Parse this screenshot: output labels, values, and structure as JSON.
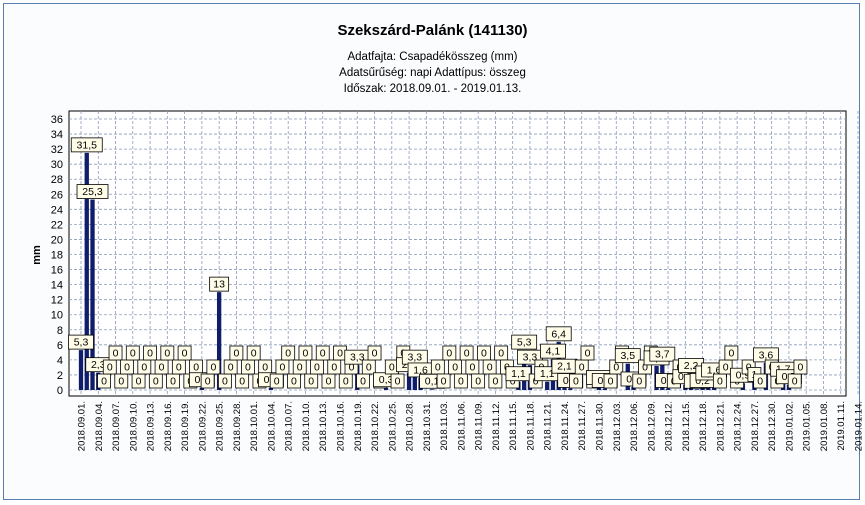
{
  "header": {
    "title": "Szekszárd-Palánk (141130)",
    "line1": "Adatfajta: Csapadékösszeg (mm)",
    "line2": "Adatsűrűség: napi  Adattípus: összeg",
    "line3": "Időszak: 2018.09.01. - 2019.01.13."
  },
  "chart_data": {
    "type": "bar",
    "title": "Szekszárd-Palánk (141130)",
    "ylabel": "mm",
    "ylim": [
      0,
      37
    ],
    "yticks": [
      0,
      2,
      4,
      6,
      8,
      10,
      12,
      14,
      16,
      18,
      20,
      22,
      24,
      26,
      28,
      30,
      32,
      34,
      36
    ],
    "grid": true,
    "bar_color": "#0f1d6b",
    "x_tick_labels": [
      "2018.09.01.",
      "2018.09.04.",
      "2018.09.07.",
      "2018.09.10.",
      "2018.09.13.",
      "2018.09.16.",
      "2018.09.19.",
      "2018.09.22.",
      "2018.09.25.",
      "2018.09.28.",
      "2018.10.01.",
      "2018.10.04.",
      "2018.10.07.",
      "2018.10.10.",
      "2018.10.13.",
      "2018.10.16.",
      "2018.10.19.",
      "2018.10.22.",
      "2018.10.25.",
      "2018.10.28.",
      "2018.10.31.",
      "2018.11.03.",
      "2018.11.06.",
      "2018.11.09.",
      "2018.11.12.",
      "2018.11.15.",
      "2018.11.18.",
      "2018.11.21.",
      "2018.11.24.",
      "2018.11.27.",
      "2018.11.30.",
      "2018.12.03.",
      "2018.12.06.",
      "2018.12.09.",
      "2018.12.12.",
      "2018.12.15.",
      "2018.12.18.",
      "2018.12.21.",
      "2018.12.24.",
      "2018.12.27.",
      "2018.12.30.",
      "2019.01.02.",
      "2019.01.05.",
      "2019.01.08.",
      "2019.01.11.",
      "2019.01.14."
    ],
    "bars": [
      {
        "day": 0,
        "value": 5.3,
        "label": "5,3"
      },
      {
        "day": 1,
        "value": 31.5,
        "label": "31,5"
      },
      {
        "day": 2,
        "value": 25.3,
        "label": "25,3"
      },
      {
        "day": 3,
        "value": 2.3,
        "label": "2,3"
      },
      {
        "day": 4,
        "value": 0,
        "label": "0"
      },
      {
        "day": 5,
        "value": 0,
        "label": "0"
      },
      {
        "day": 6,
        "value": 0,
        "label": "0"
      },
      {
        "day": 7,
        "value": 0,
        "label": "0"
      },
      {
        "day": 8,
        "value": 0,
        "label": "0"
      },
      {
        "day": 9,
        "value": 0,
        "label": "0"
      },
      {
        "day": 10,
        "value": 0,
        "label": "0"
      },
      {
        "day": 11,
        "value": 0,
        "label": "0"
      },
      {
        "day": 12,
        "value": 0,
        "label": "0"
      },
      {
        "day": 13,
        "value": 0,
        "label": "0"
      },
      {
        "day": 14,
        "value": 0,
        "label": "0"
      },
      {
        "day": 15,
        "value": 0,
        "label": "0"
      },
      {
        "day": 16,
        "value": 0,
        "label": "0"
      },
      {
        "day": 17,
        "value": 0,
        "label": "0"
      },
      {
        "day": 18,
        "value": 0,
        "label": "0"
      },
      {
        "day": 19,
        "value": 0,
        "label": "0"
      },
      {
        "day": 20,
        "value": 0,
        "label": "0"
      },
      {
        "day": 21,
        "value": 0.3,
        "label": "0,3"
      },
      {
        "day": 22,
        "value": 0,
        "label": "0"
      },
      {
        "day": 23,
        "value": 0,
        "label": "0"
      },
      {
        "day": 24,
        "value": 13,
        "label": "13"
      },
      {
        "day": 25,
        "value": 0,
        "label": "0"
      },
      {
        "day": 26,
        "value": 0,
        "label": "0"
      },
      {
        "day": 27,
        "value": 0,
        "label": "0"
      },
      {
        "day": 28,
        "value": 0,
        "label": "0"
      },
      {
        "day": 29,
        "value": 0,
        "label": "0"
      },
      {
        "day": 30,
        "value": 0,
        "label": "0"
      },
      {
        "day": 31,
        "value": 0,
        "label": "0"
      },
      {
        "day": 32,
        "value": 0,
        "label": "0"
      },
      {
        "day": 33,
        "value": 0.3,
        "label": "0,3"
      },
      {
        "day": 34,
        "value": 0,
        "label": "0"
      },
      {
        "day": 35,
        "value": 0,
        "label": "0"
      },
      {
        "day": 36,
        "value": 0,
        "label": "0"
      },
      {
        "day": 37,
        "value": 0,
        "label": "0"
      },
      {
        "day": 38,
        "value": 0,
        "label": "0"
      },
      {
        "day": 39,
        "value": 0,
        "label": "0"
      },
      {
        "day": 40,
        "value": 0,
        "label": "0"
      },
      {
        "day": 41,
        "value": 0,
        "label": "0"
      },
      {
        "day": 42,
        "value": 0,
        "label": "0"
      },
      {
        "day": 43,
        "value": 0,
        "label": "0"
      },
      {
        "day": 44,
        "value": 0,
        "label": "0"
      },
      {
        "day": 45,
        "value": 0,
        "label": "0"
      },
      {
        "day": 46,
        "value": 0,
        "label": "0"
      },
      {
        "day": 47,
        "value": 0,
        "label": "0"
      },
      {
        "day": 48,
        "value": 3.3,
        "label": "3,3"
      },
      {
        "day": 49,
        "value": 0,
        "label": "0"
      },
      {
        "day": 50,
        "value": 0,
        "label": "0"
      },
      {
        "day": 51,
        "value": 0,
        "label": "0"
      },
      {
        "day": 52,
        "value": 0,
        "label": "0"
      },
      {
        "day": 53,
        "value": 0.3,
        "label": "0,3"
      },
      {
        "day": 54,
        "value": 0,
        "label": "0"
      },
      {
        "day": 55,
        "value": 0,
        "label": "0"
      },
      {
        "day": 56,
        "value": 0,
        "label": "0"
      },
      {
        "day": 57,
        "value": 2.3,
        "label": "2,3"
      },
      {
        "day": 58,
        "value": 3.3,
        "label": "3,3"
      },
      {
        "day": 59,
        "value": 1.6,
        "label": "1,6"
      },
      {
        "day": 60,
        "value": 0,
        "label": "0"
      },
      {
        "day": 61,
        "value": 0.1,
        "label": "0,1"
      },
      {
        "day": 62,
        "value": 0,
        "label": "0"
      },
      {
        "day": 63,
        "value": 0,
        "label": "0"
      },
      {
        "day": 64,
        "value": 0,
        "label": "0"
      },
      {
        "day": 65,
        "value": 0,
        "label": "0"
      },
      {
        "day": 66,
        "value": 0,
        "label": "0"
      },
      {
        "day": 67,
        "value": 0,
        "label": "0"
      },
      {
        "day": 68,
        "value": 0,
        "label": "0"
      },
      {
        "day": 69,
        "value": 0,
        "label": "0"
      },
      {
        "day": 70,
        "value": 0,
        "label": "0"
      },
      {
        "day": 71,
        "value": 0,
        "label": "0"
      },
      {
        "day": 72,
        "value": 0,
        "label": "0"
      },
      {
        "day": 73,
        "value": 0,
        "label": "0"
      },
      {
        "day": 74,
        "value": 0,
        "label": "0"
      },
      {
        "day": 75,
        "value": 0,
        "label": "0"
      },
      {
        "day": 76,
        "value": 1.1,
        "label": "1,1"
      },
      {
        "day": 77,
        "value": 5.3,
        "label": "5,3"
      },
      {
        "day": 78,
        "value": 3.3,
        "label": "3,3"
      },
      {
        "day": 79,
        "value": 0,
        "label": "0"
      },
      {
        "day": 80,
        "value": 0,
        "label": "0"
      },
      {
        "day": 81,
        "value": 1.1,
        "label": "1,1"
      },
      {
        "day": 82,
        "value": 4.1,
        "label": "4,1"
      },
      {
        "day": 83,
        "value": 6.4,
        "label": "6,4"
      },
      {
        "day": 84,
        "value": 2.1,
        "label": "2,1"
      },
      {
        "day": 85,
        "value": 0.2,
        "label": "0,2"
      },
      {
        "day": 86,
        "value": 0,
        "label": "0"
      },
      {
        "day": 87,
        "value": 0,
        "label": "0"
      },
      {
        "day": 88,
        "value": 0,
        "label": "0"
      },
      {
        "day": 89,
        "value": 0,
        "label": "0"
      },
      {
        "day": 90,
        "value": 0.6,
        "label": "0,6"
      },
      {
        "day": 91,
        "value": 0.2,
        "label": "0,2"
      },
      {
        "day": 92,
        "value": 0,
        "label": "0"
      },
      {
        "day": 93,
        "value": 0,
        "label": "0"
      },
      {
        "day": 94,
        "value": 0,
        "label": "0"
      },
      {
        "day": 95,
        "value": 3.5,
        "label": "3,5"
      },
      {
        "day": 96,
        "value": 0.4,
        "label": "0,4"
      },
      {
        "day": 97,
        "value": 0,
        "label": "0"
      },
      {
        "day": 98,
        "value": 0,
        "label": "0"
      },
      {
        "day": 99,
        "value": 0,
        "label": "0"
      },
      {
        "day": 100,
        "value": 3.2,
        "label": "3,2"
      },
      {
        "day": 101,
        "value": 3.7,
        "label": "3,7"
      },
      {
        "day": 102,
        "value": 0.2,
        "label": "0,2"
      },
      {
        "day": 103,
        "value": 0,
        "label": "0"
      },
      {
        "day": 104,
        "value": 0,
        "label": "0"
      },
      {
        "day": 105,
        "value": 0.7,
        "label": "0,7"
      },
      {
        "day": 106,
        "value": 2.2,
        "label": "2,2"
      },
      {
        "day": 107,
        "value": 0.1,
        "label": "0,1"
      },
      {
        "day": 108,
        "value": 0.2,
        "label": "0,2"
      },
      {
        "day": 109,
        "value": 1.2,
        "label": "1,2"
      },
      {
        "day": 110,
        "value": 1.6,
        "label": "1,6"
      },
      {
        "day": 111,
        "value": 0,
        "label": "0"
      },
      {
        "day": 112,
        "value": 0,
        "label": "0"
      },
      {
        "day": 113,
        "value": 0,
        "label": "0"
      },
      {
        "day": 114,
        "value": 0,
        "label": "0"
      },
      {
        "day": 115,
        "value": 0.9,
        "label": "0,9"
      },
      {
        "day": 116,
        "value": 0,
        "label": "0"
      },
      {
        "day": 117,
        "value": 1,
        "label": "1"
      },
      {
        "day": 118,
        "value": 0,
        "label": "0"
      },
      {
        "day": 119,
        "value": 3.6,
        "label": "3,6"
      },
      {
        "day": 120,
        "value": 0,
        "label": "0"
      },
      {
        "day": 121,
        "value": 0,
        "label": "0"
      },
      {
        "day": 122,
        "value": 1.7,
        "label": "1,7"
      },
      {
        "day": 123,
        "value": 0.7,
        "label": "0,7"
      },
      {
        "day": 124,
        "value": 0,
        "label": "0"
      },
      {
        "day": 125,
        "value": 0,
        "label": "0"
      }
    ]
  }
}
